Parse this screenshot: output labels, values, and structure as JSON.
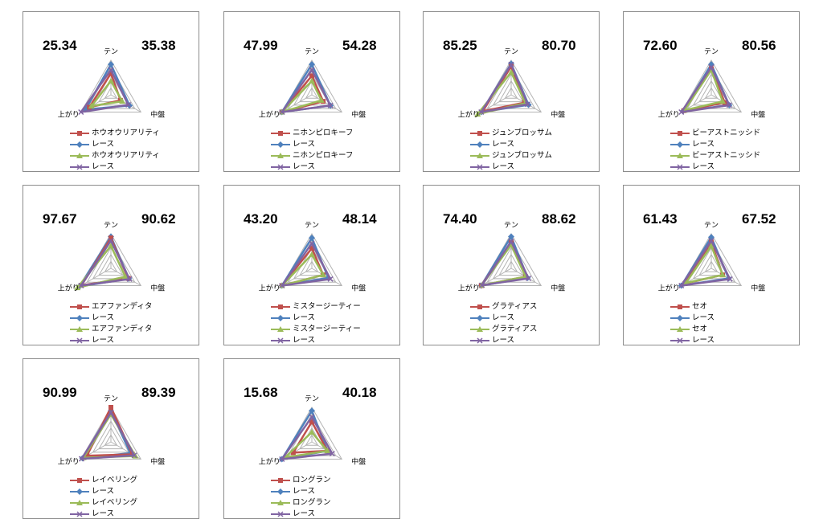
{
  "colors": {
    "grid": "#b4b4b4",
    "series": [
      "#c0504d",
      "#4f81bd",
      "#9bbb59",
      "#8064a2"
    ],
    "markers": [
      "square",
      "diamond",
      "triangle",
      "cross"
    ]
  },
  "chart_data": [
    {
      "type": "radar",
      "axes": [
        "テン",
        "中盤",
        "上がり"
      ],
      "left_value": "25.34",
      "right_value": "35.38",
      "series": [
        {
          "name": "ホウオウリアリティ",
          "values": [
            0.62,
            0.32,
            0.72
          ]
        },
        {
          "name": "レース",
          "values": [
            0.88,
            0.62,
            0.85
          ]
        },
        {
          "name": "ホウオウリアリティ",
          "values": [
            0.4,
            0.38,
            0.65
          ]
        },
        {
          "name": "レース",
          "values": [
            0.72,
            0.58,
            1.0
          ]
        }
      ]
    },
    {
      "type": "radar",
      "axes": [
        "テン",
        "中盤",
        "上がり"
      ],
      "left_value": "47.99",
      "right_value": "54.28",
      "series": [
        {
          "name": "ニホンピロキーフ",
          "values": [
            0.55,
            0.38,
            1.0
          ]
        },
        {
          "name": "レース",
          "values": [
            0.88,
            0.62,
            1.0
          ]
        },
        {
          "name": "ニホンピロキーフ",
          "values": [
            0.4,
            0.32,
            1.0
          ]
        },
        {
          "name": "レース",
          "values": [
            0.72,
            0.62,
            1.0
          ]
        }
      ]
    },
    {
      "type": "radar",
      "axes": [
        "テン",
        "中盤",
        "上がり"
      ],
      "left_value": "85.25",
      "right_value": "80.70",
      "series": [
        {
          "name": "ジュンブロッサム",
          "values": [
            0.82,
            0.45,
            0.95
          ]
        },
        {
          "name": "レース",
          "values": [
            0.9,
            0.58,
            1.0
          ]
        },
        {
          "name": "ジュンブロッサム",
          "values": [
            0.65,
            0.48,
            1.12
          ]
        },
        {
          "name": "レース",
          "values": [
            0.88,
            0.55,
            1.0
          ]
        }
      ]
    },
    {
      "type": "radar",
      "axes": [
        "テン",
        "中盤",
        "上がり"
      ],
      "left_value": "72.60",
      "right_value": "80.56",
      "series": [
        {
          "name": "ビーアストニッシド",
          "values": [
            0.75,
            0.45,
            0.92
          ]
        },
        {
          "name": "レース",
          "values": [
            0.88,
            0.6,
            0.95
          ]
        },
        {
          "name": "ビーアストニッシド",
          "values": [
            0.72,
            0.38,
            0.9
          ]
        },
        {
          "name": "レース",
          "values": [
            0.8,
            0.6,
            1.0
          ]
        }
      ]
    },
    {
      "type": "radar",
      "axes": [
        "テン",
        "中盤",
        "上がり"
      ],
      "left_value": "97.67",
      "right_value": "90.62",
      "series": [
        {
          "name": "エアファンディタ",
          "values": [
            0.88,
            0.58,
            0.98
          ]
        },
        {
          "name": "レース",
          "values": [
            0.92,
            0.6,
            1.05
          ]
        },
        {
          "name": "エアファンディタ",
          "values": [
            0.65,
            0.48,
            1.12
          ]
        },
        {
          "name": "レース",
          "values": [
            0.8,
            0.62,
            1.0
          ]
        }
      ]
    },
    {
      "type": "radar",
      "axes": [
        "テン",
        "中盤",
        "上がり"
      ],
      "left_value": "43.20",
      "right_value": "48.14",
      "series": [
        {
          "name": "ミスタージーティー",
          "values": [
            0.58,
            0.38,
            1.0
          ]
        },
        {
          "name": "レース",
          "values": [
            0.88,
            0.55,
            1.0
          ]
        },
        {
          "name": "ミスタージーティー",
          "values": [
            0.4,
            0.38,
            1.0
          ]
        },
        {
          "name": "レース",
          "values": [
            0.72,
            0.62,
            1.0
          ]
        }
      ]
    },
    {
      "type": "radar",
      "axes": [
        "テン",
        "中盤",
        "上がり"
      ],
      "left_value": "74.40",
      "right_value": "88.62",
      "series": [
        {
          "name": "グラティアス",
          "values": [
            0.75,
            0.48,
            1.0
          ]
        },
        {
          "name": "レース",
          "values": [
            0.92,
            0.55,
            1.0
          ]
        },
        {
          "name": "グラティアス",
          "values": [
            0.68,
            0.48,
            0.98
          ]
        },
        {
          "name": "レース",
          "values": [
            0.78,
            0.58,
            0.98
          ]
        }
      ]
    },
    {
      "type": "radar",
      "axes": [
        "テン",
        "中盤",
        "上がり"
      ],
      "left_value": "61.43",
      "right_value": "67.52",
      "series": [
        {
          "name": "セオ",
          "values": [
            0.75,
            0.38,
            0.88
          ]
        },
        {
          "name": "レース",
          "values": [
            0.9,
            0.58,
            1.0
          ]
        },
        {
          "name": "セオ",
          "values": [
            0.65,
            0.38,
            0.85
          ]
        },
        {
          "name": "レース",
          "values": [
            0.8,
            0.62,
            1.0
          ]
        }
      ]
    },
    {
      "type": "radar",
      "axes": [
        "テン",
        "中盤",
        "上がり"
      ],
      "left_value": "90.99",
      "right_value": "89.39",
      "series": [
        {
          "name": "レイベリング",
          "values": [
            1.0,
            0.72,
            0.8
          ]
        },
        {
          "name": "レース",
          "values": [
            0.9,
            0.65,
            0.95
          ]
        },
        {
          "name": "レイベリング",
          "values": [
            0.8,
            0.82,
            0.92
          ]
        },
        {
          "name": "レース",
          "values": [
            0.85,
            0.78,
            0.98
          ]
        }
      ]
    },
    {
      "type": "radar",
      "axes": [
        "テン",
        "中盤",
        "上がり"
      ],
      "left_value": "15.68",
      "right_value": "40.18",
      "series": [
        {
          "name": "ロングラン",
          "values": [
            0.58,
            0.52,
            0.62
          ]
        },
        {
          "name": "レース",
          "values": [
            0.9,
            0.52,
            1.0
          ]
        },
        {
          "name": "ロングラン",
          "values": [
            0.28,
            0.52,
            0.9
          ]
        },
        {
          "name": "レース",
          "values": [
            0.72,
            0.68,
            1.0
          ]
        }
      ]
    }
  ]
}
